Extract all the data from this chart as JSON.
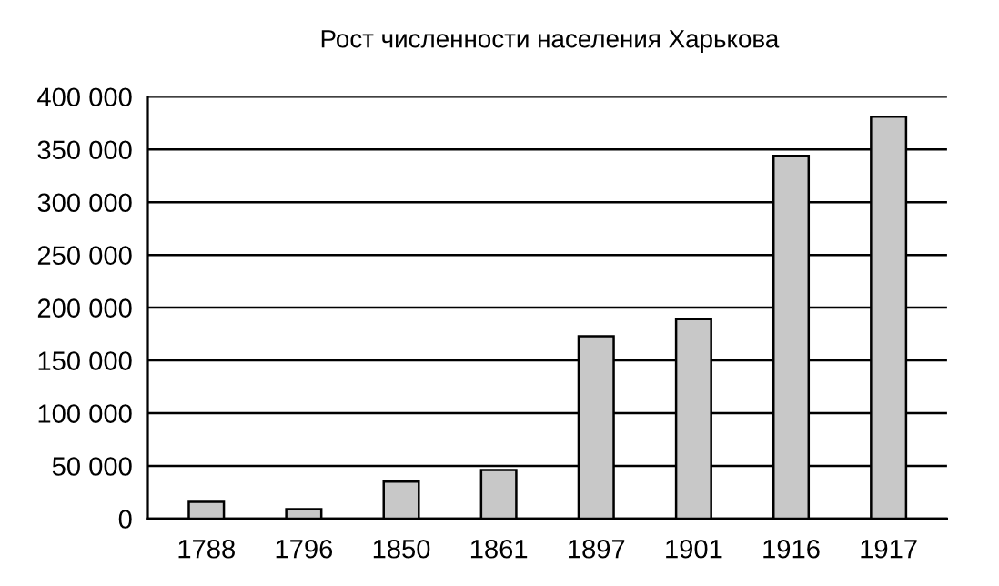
{
  "chart_data": {
    "type": "bar",
    "title": "Рост численности населения Харькова",
    "categories": [
      "1788",
      "1796",
      "1850",
      "1861",
      "1897",
      "1901",
      "1916",
      "1917"
    ],
    "values": [
      16000,
      9000,
      35000,
      46000,
      173000,
      189000,
      344000,
      381000
    ],
    "color": "#c8c8c8",
    "ylim": [
      0,
      400000
    ],
    "yticks": [
      {
        "value": 0,
        "label": "0"
      },
      {
        "value": 50000,
        "label": "50 000"
      },
      {
        "value": 100000,
        "label": "100 000"
      },
      {
        "value": 150000,
        "label": "150 000"
      },
      {
        "value": 200000,
        "label": "200 000"
      },
      {
        "value": 250000,
        "label": "250 000"
      },
      {
        "value": 300000,
        "label": "300 000"
      },
      {
        "value": 350000,
        "label": "350 000"
      },
      {
        "value": 400000,
        "label": "400 000"
      }
    ],
    "grid": "y"
  }
}
